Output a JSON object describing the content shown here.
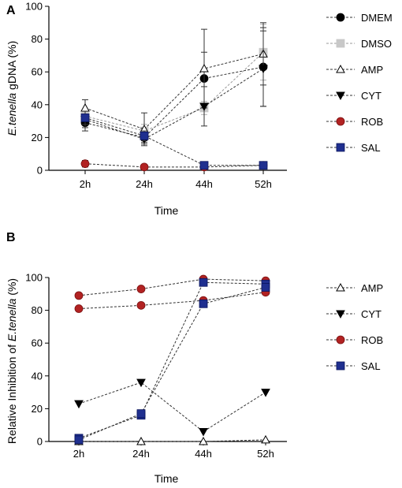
{
  "chart_data": [
    {
      "panel_label": "A",
      "type": "line",
      "categories": [
        "2h",
        "24h",
        "44h",
        "52h"
      ],
      "ylabel_italic": "E.tenella",
      "ylabel_rest": " gDNA (%)",
      "xlabel": "Time",
      "ylim": [
        0,
        100
      ],
      "yticks": [
        "0",
        "20",
        "40",
        "60",
        "80",
        "100"
      ],
      "legend_position": "right",
      "series": [
        {
          "name": "DMEM",
          "marker": "circle",
          "color": "#000000",
          "values": [
            29,
            20,
            56,
            63
          ],
          "err": [
            5,
            3,
            16,
            24
          ]
        },
        {
          "name": "DMSO",
          "marker": "square",
          "color": "#c8c8c8",
          "values": [
            33,
            24,
            38,
            72
          ],
          "err": [
            3,
            4,
            4,
            17
          ]
        },
        {
          "name": "AMP",
          "marker": "triangle-up-open",
          "color": "#000000",
          "values": [
            38,
            25,
            62,
            71
          ],
          "err": [
            5,
            10,
            24,
            19
          ]
        },
        {
          "name": "CYT",
          "marker": "triangle-down",
          "color": "#000000",
          "values": [
            31,
            19,
            39,
            62
          ],
          "err": [
            5,
            3,
            12,
            23
          ]
        },
        {
          "name": "ROB",
          "marker": "circle",
          "color": "#b22222",
          "values": [
            4,
            2,
            2,
            3
          ],
          "err": [
            2,
            1,
            1,
            1
          ]
        },
        {
          "name": "SAL",
          "marker": "square",
          "color": "#1f2f8f",
          "values": [
            32,
            21,
            3,
            3
          ],
          "err": [
            4,
            3,
            1,
            1
          ]
        }
      ]
    },
    {
      "panel_label": "B",
      "type": "line",
      "categories": [
        "2h",
        "24h",
        "44h",
        "52h"
      ],
      "ylabel_prefix": "Relative Inhibition of ",
      "ylabel_italic": "E.tenella",
      "ylabel_suffix": " (%)",
      "xlabel": "Time",
      "ylim": [
        0,
        100
      ],
      "yticks": [
        "0",
        "20",
        "40",
        "60",
        "80",
        "100"
      ],
      "legend_position": "right",
      "series": [
        {
          "name": "AMP",
          "marker": "triangle-up-open",
          "color": "#000000",
          "values": [
            0,
            0,
            0,
            1
          ]
        },
        {
          "name": "CYT",
          "marker": "triangle-down",
          "color": "#000000",
          "values": [
            23,
            36,
            6,
            30
          ]
        },
        {
          "name": "ROB",
          "marker": "circle",
          "color": "#b22222",
          "values": [
            89,
            93,
            99,
            98
          ]
        },
        {
          "name": "ROB",
          "marker": "circle",
          "color": "#b22222",
          "values": [
            81,
            83,
            86,
            91
          ],
          "legend": false
        },
        {
          "name": "SAL",
          "marker": "square",
          "color": "#1f2f8f",
          "values": [
            2,
            16,
            97,
            96
          ]
        },
        {
          "name": "SAL",
          "marker": "square",
          "color": "#1f2f8f",
          "values": [
            1,
            17,
            84,
            94
          ],
          "legend": false
        }
      ]
    }
  ]
}
